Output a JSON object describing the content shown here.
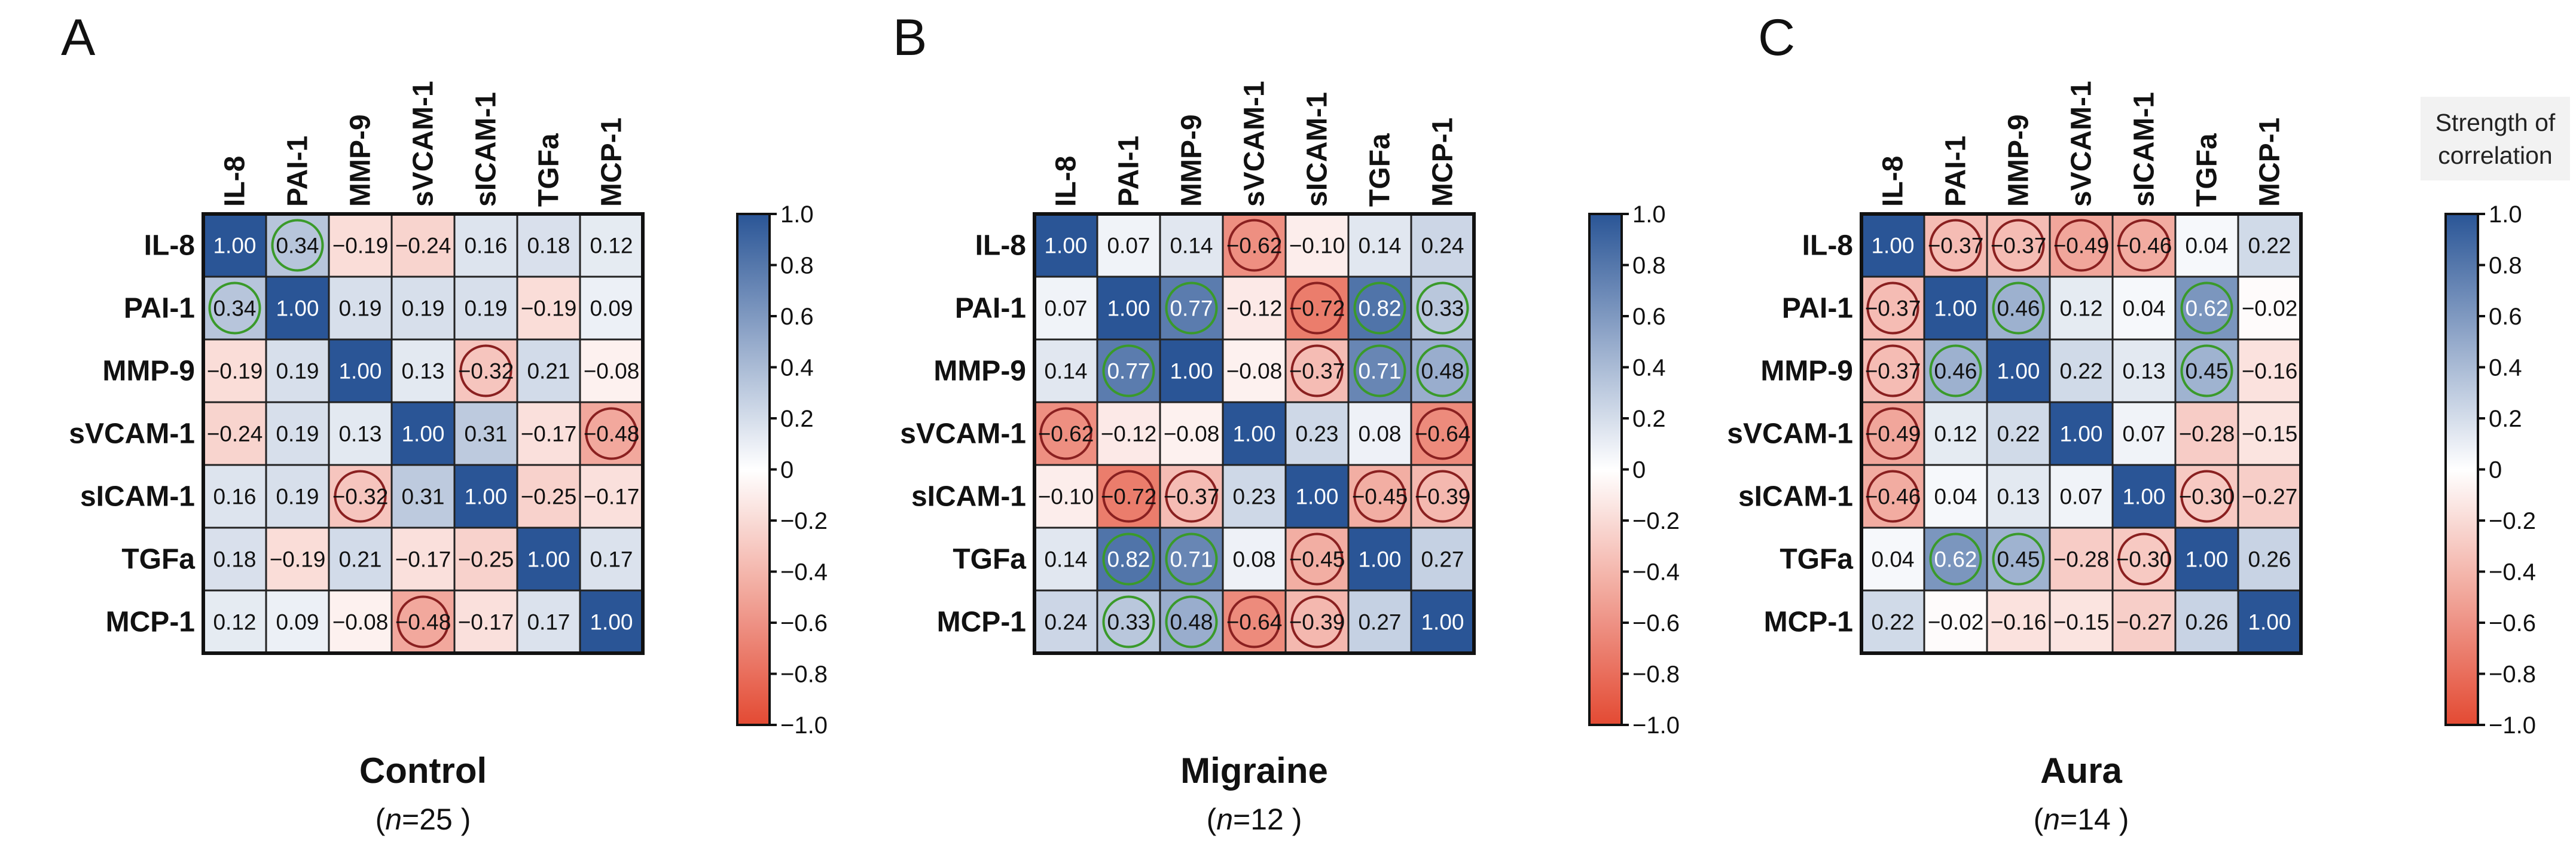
{
  "legend_note": "Strength of\ncorrelation",
  "colorbar": {
    "ticks": [
      1.0,
      0.8,
      0.6,
      0.4,
      0.2,
      0,
      -0.2,
      -0.4,
      -0.6,
      -0.8,
      -1.0
    ],
    "tick_labels": [
      "1.0",
      "0.8",
      "0.6",
      "0.4",
      "0.2",
      "0",
      "−0.2",
      "−0.4",
      "−0.6",
      "−0.8",
      "−1.0"
    ],
    "range": [
      -1.0,
      1.0
    ],
    "colors": {
      "positive": "#2a5596",
      "neutral": "#ffffff",
      "negative": "#e34a33"
    }
  },
  "circle_colors": {
    "positive": "#3a9a2a",
    "negative": "#8a2020"
  },
  "chart_data": [
    {
      "type": "heatmap",
      "panel_letter": "A",
      "title": "Control",
      "subtitle_prefix": "(",
      "subtitle_italic": "n",
      "subtitle_suffix": "=25 )",
      "labels": [
        "IL-8",
        "PAI-1",
        "MMP-9",
        "sVCAM-1",
        "sICAM-1",
        "TGFa",
        "MCP-1"
      ],
      "values": [
        [
          1.0,
          0.34,
          -0.19,
          -0.24,
          0.16,
          0.18,
          0.12
        ],
        [
          0.34,
          1.0,
          0.19,
          0.19,
          0.19,
          -0.19,
          0.09
        ],
        [
          -0.19,
          0.19,
          1.0,
          0.13,
          -0.32,
          0.21,
          -0.08
        ],
        [
          -0.24,
          0.19,
          0.13,
          1.0,
          0.31,
          -0.17,
          -0.48
        ],
        [
          0.16,
          0.19,
          -0.32,
          0.31,
          1.0,
          -0.25,
          -0.17
        ],
        [
          0.18,
          -0.19,
          0.21,
          -0.17,
          -0.25,
          1.0,
          0.17
        ],
        [
          0.12,
          0.09,
          -0.08,
          -0.48,
          -0.17,
          0.17,
          1.0
        ]
      ],
      "circled": [
        [
          0,
          1
        ],
        [
          1,
          0
        ],
        [
          2,
          4
        ],
        [
          4,
          2
        ],
        [
          3,
          6
        ],
        [
          6,
          3
        ]
      ]
    },
    {
      "type": "heatmap",
      "panel_letter": "B",
      "title": "Migraine",
      "subtitle_prefix": "(",
      "subtitle_italic": "n",
      "subtitle_suffix": "=12 )",
      "labels": [
        "IL-8",
        "PAI-1",
        "MMP-9",
        "sVCAM-1",
        "sICAM-1",
        "TGFa",
        "MCP-1"
      ],
      "values": [
        [
          1.0,
          0.07,
          0.14,
          -0.62,
          -0.1,
          0.14,
          0.24
        ],
        [
          0.07,
          1.0,
          0.77,
          -0.12,
          -0.72,
          0.82,
          0.33
        ],
        [
          0.14,
          0.77,
          1.0,
          -0.08,
          -0.37,
          0.71,
          0.48
        ],
        [
          -0.62,
          -0.12,
          -0.08,
          1.0,
          0.23,
          0.08,
          -0.64
        ],
        [
          -0.1,
          -0.72,
          -0.37,
          0.23,
          1.0,
          -0.45,
          -0.39
        ],
        [
          0.14,
          0.82,
          0.71,
          0.08,
          -0.45,
          1.0,
          0.27
        ],
        [
          0.24,
          0.33,
          0.48,
          -0.64,
          -0.39,
          0.27,
          1.0
        ]
      ],
      "circled": [
        [
          0,
          3
        ],
        [
          3,
          0
        ],
        [
          1,
          2
        ],
        [
          2,
          1
        ],
        [
          1,
          4
        ],
        [
          4,
          1
        ],
        [
          1,
          5
        ],
        [
          5,
          1
        ],
        [
          1,
          6
        ],
        [
          6,
          1
        ],
        [
          2,
          4
        ],
        [
          4,
          2
        ],
        [
          2,
          5
        ],
        [
          5,
          2
        ],
        [
          2,
          6
        ],
        [
          6,
          2
        ],
        [
          3,
          6
        ],
        [
          6,
          3
        ],
        [
          4,
          5
        ],
        [
          5,
          4
        ],
        [
          4,
          6
        ],
        [
          6,
          4
        ]
      ]
    },
    {
      "type": "heatmap",
      "panel_letter": "C",
      "title": "Aura",
      "subtitle_prefix": "(",
      "subtitle_italic": "n",
      "subtitle_suffix": "=14 )",
      "labels": [
        "IL-8",
        "PAI-1",
        "MMP-9",
        "sVCAM-1",
        "sICAM-1",
        "TGFa",
        "MCP-1"
      ],
      "values": [
        [
          1.0,
          -0.37,
          -0.37,
          -0.49,
          -0.46,
          0.04,
          0.22
        ],
        [
          -0.37,
          1.0,
          0.46,
          0.12,
          0.04,
          0.62,
          -0.02
        ],
        [
          -0.37,
          0.46,
          1.0,
          0.22,
          0.13,
          0.45,
          -0.16
        ],
        [
          -0.49,
          0.12,
          0.22,
          1.0,
          0.07,
          -0.28,
          -0.15
        ],
        [
          -0.46,
          0.04,
          0.13,
          0.07,
          1.0,
          -0.3,
          -0.27
        ],
        [
          0.04,
          0.62,
          0.45,
          -0.28,
          -0.3,
          1.0,
          0.26
        ],
        [
          0.22,
          -0.02,
          -0.16,
          -0.15,
          -0.27,
          0.26,
          1.0
        ]
      ],
      "circled": [
        [
          0,
          1
        ],
        [
          1,
          0
        ],
        [
          0,
          2
        ],
        [
          2,
          0
        ],
        [
          0,
          3
        ],
        [
          3,
          0
        ],
        [
          0,
          4
        ],
        [
          4,
          0
        ],
        [
          1,
          2
        ],
        [
          2,
          1
        ],
        [
          1,
          5
        ],
        [
          5,
          1
        ],
        [
          2,
          5
        ],
        [
          5,
          2
        ],
        [
          4,
          5
        ],
        [
          5,
          4
        ]
      ]
    }
  ]
}
